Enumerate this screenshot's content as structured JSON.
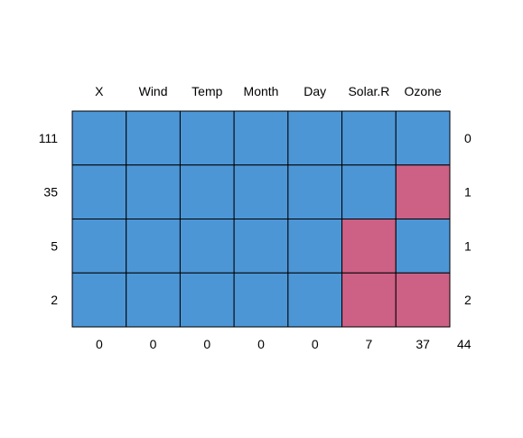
{
  "chart_data": {
    "type": "heatmap",
    "title": "",
    "columns": [
      "X",
      "Wind",
      "Temp",
      "Month",
      "Day",
      "Solar.R",
      "Ozone"
    ],
    "row_counts": [
      111,
      35,
      5,
      2
    ],
    "row_missing_totals": [
      0,
      1,
      1,
      2
    ],
    "column_missing_totals": [
      0,
      0,
      0,
      0,
      0,
      7,
      37
    ],
    "grand_total_missing": 44,
    "cells": [
      [
        1,
        1,
        1,
        1,
        1,
        1,
        1
      ],
      [
        1,
        1,
        1,
        1,
        1,
        1,
        0
      ],
      [
        1,
        1,
        1,
        1,
        1,
        0,
        1
      ],
      [
        1,
        1,
        1,
        1,
        1,
        0,
        0
      ]
    ],
    "colors": {
      "observed": "#4d96d6",
      "missing": "#cc6185",
      "border": "#000000"
    }
  }
}
